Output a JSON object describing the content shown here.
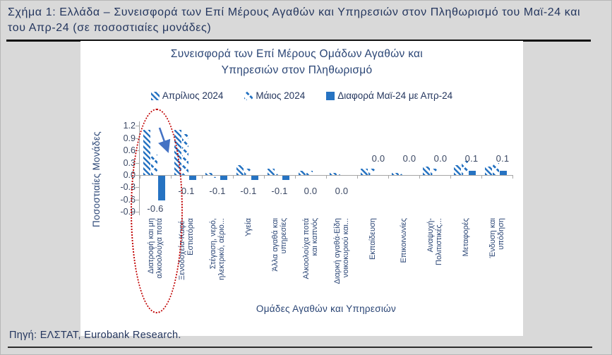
{
  "page": {
    "caption": "Σχήμα 1: Ελλάδα – Συνεισφορά των Επί Μέρους Αγαθών και Υπηρεσιών στον Πληθωρισμό του Μαϊ-24 και του Απρ-24 (σε ποσοστιαίες μονάδες)",
    "source": "Πηγή: ΕΛΣΤΑΤ, Eurobank Research."
  },
  "chart_data": {
    "type": "bar",
    "title": "Συνεισφορά των Επί Μέρους Ομάδων Αγαθών και Υπηρεσιών στον Πληθωρισμό",
    "xlabel": "Ομάδες Αγαθών και Υπηρεσιών",
    "ylabel": "Ποσοστιαίες Μονάδες",
    "ylim": [
      -0.9,
      1.2
    ],
    "yticks": [
      1.2,
      0.9,
      0.6,
      0.3,
      0,
      -0.3,
      -0.6,
      -0.9
    ],
    "grid": false,
    "legend_position": "top",
    "categories": [
      "Διατροφή και μη αλκοολούχα ποτά",
      "Ξενοδοχεία-Καφέ-Εστιατόρια",
      "Στέγαση, νερό, ηλεκτρικό, αέριο...",
      "Υγεία",
      "Άλλα αγαθά και υπηρεσίες",
      "Αλκοολούχα ποτά και καπνός",
      "Διαρκή αγαθά-Είδη νοικοκυριού και...",
      "Εκπαίδευση",
      "Επικοινωνίες",
      "Αναψυχή-Πολιτιστικές...",
      "Μεταφορές",
      "Ένδυση και υπόδηση"
    ],
    "series": [
      {
        "name": "Απρίλιος 2024",
        "pattern": "dense-diagonal-hatch",
        "values": [
          1.1,
          1.1,
          0.05,
          0.25,
          0.15,
          0.1,
          0.05,
          0.15,
          0.05,
          0.2,
          0.25,
          0.2
        ]
      },
      {
        "name": "Μάιος 2024",
        "pattern": "sparse-diagonal-hatch",
        "values": [
          0.5,
          1.0,
          -0.05,
          0.15,
          0.05,
          0.1,
          0.03,
          0.15,
          0.05,
          0.15,
          0.35,
          0.3
        ]
      },
      {
        "name": "Διαφορά Μαϊ-24 με Απρ-24",
        "pattern": "solid",
        "values": [
          -0.6,
          -0.1,
          -0.1,
          -0.1,
          -0.1,
          0,
          0,
          0,
          0,
          0,
          0.1,
          0.1
        ]
      }
    ],
    "data_labels": {
      "series": "Διαφορά Μαϊ-24 με Απρ-24",
      "values": [
        "-0.6",
        "-0.1",
        "-0.1",
        "-0.1",
        "-0.1",
        "0.0",
        "0.0",
        "0.0",
        "0.0",
        "0.0",
        "0.1",
        "0.1"
      ],
      "side": [
        "below",
        "below",
        "below",
        "below",
        "below",
        "below",
        "below",
        "above",
        "above",
        "above",
        "above",
        "above"
      ]
    },
    "annotations": {
      "ellipse": "red dotted ellipse highlighting the category Διατροφή και μη αλκοολούχα ποτά",
      "arrow": "blue arrow pointing down from the Απρίλιος 2024 bar to the Μάιος 2024 bar of the first category"
    }
  },
  "colors": {
    "bar_blue": "#2673C2",
    "text_navy": "#24365E",
    "chart_text": "#2A4575",
    "tick_text": "#3A4763",
    "ellipse_red": "#C00000",
    "arrow_blue": "#4472C4",
    "background_gray": "#D9D9D9",
    "panel_white": "#FFFFFF",
    "axis_gray": "#A6A6A6",
    "rule_black": "#111111"
  }
}
